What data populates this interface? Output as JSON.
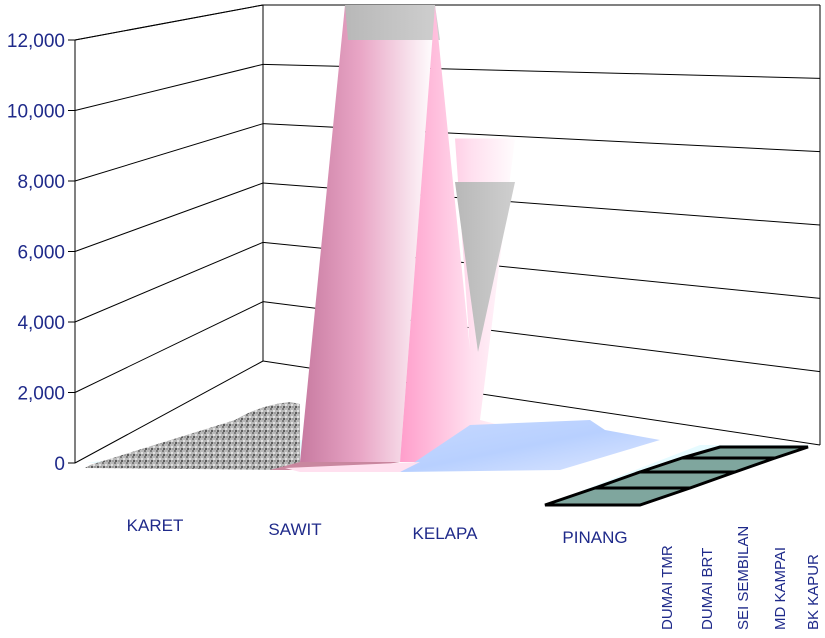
{
  "chart_data": {
    "type": "area",
    "title": "",
    "xlabel": "",
    "ylabel": "",
    "ylim": [
      0,
      12000
    ],
    "y_ticks": [
      "0",
      "2,000",
      "4,000",
      "6,000",
      "8,000",
      "10,000",
      "12,000"
    ],
    "categories": [
      "KARET",
      "SAWIT",
      "KELAPA",
      "PINANG"
    ],
    "series": [
      {
        "name": "DUMAI TMR",
        "values": [
          50,
          0,
          50,
          0
        ]
      },
      {
        "name": "DUMAI BRT",
        "values": [
          1500,
          12000,
          7500,
          1000
        ]
      },
      {
        "name": "SEI SEMBILAN",
        "values": [
          0,
          0,
          0,
          0
        ]
      },
      {
        "name": "MD KAMPAI",
        "values": [
          0,
          0,
          0,
          0
        ]
      },
      {
        "name": "BK KAPUR",
        "values": [
          0,
          0,
          0,
          0
        ]
      }
    ],
    "grid": true,
    "colors": {
      "axis_text": "#1f2a8a",
      "wall": "#ffffff",
      "floor": "#7fa69e",
      "surface_light": "#ffe6f2",
      "surface_dark": "#c77aa0",
      "top_face": "#bdbdbd"
    }
  }
}
